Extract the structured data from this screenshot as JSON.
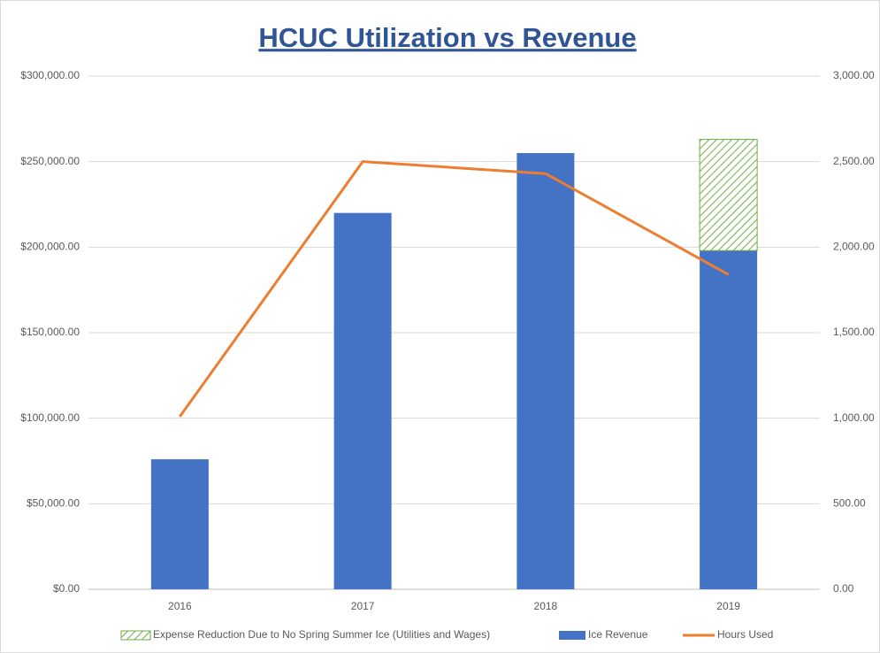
{
  "chart_data": {
    "type": "bar",
    "title": "HCUC Utilization vs Revenue",
    "categories": [
      "2016",
      "2017",
      "2018",
      "2019"
    ],
    "series": [
      {
        "name": "Expense Reduction Due to No Spring Summer Ice (Utilities and Wages)",
        "type": "bar",
        "color": "#70ad47",
        "pattern": "hatch",
        "values": [
          null,
          null,
          null,
          65000
        ]
      },
      {
        "name": "Ice Revenue",
        "type": "bar",
        "color": "#4472c4",
        "values": [
          76000,
          220000,
          255000,
          198000
        ]
      },
      {
        "name": "Hours Used",
        "type": "line",
        "axis": "y2",
        "color": "#ed7d31",
        "values": [
          1010,
          2500,
          2430,
          1840
        ]
      }
    ],
    "stacked": true,
    "ylim": [
      0,
      300000
    ],
    "yticks": [
      {
        "value": 0,
        "label": "$0.00"
      },
      {
        "value": 50000,
        "label": "$50,000.00"
      },
      {
        "value": 100000,
        "label": "$100,000.00"
      },
      {
        "value": 150000,
        "label": "$150,000.00"
      },
      {
        "value": 200000,
        "label": "$200,000.00"
      },
      {
        "value": 250000,
        "label": "$250,000.00"
      },
      {
        "value": 300000,
        "label": "$300,000.00"
      }
    ],
    "y2lim": [
      0,
      3000
    ],
    "y2ticks": [
      {
        "value": 0,
        "label": "0.00"
      },
      {
        "value": 500,
        "label": "500.00"
      },
      {
        "value": 1000,
        "label": "1,000.00"
      },
      {
        "value": 1500,
        "label": "1,500.00"
      },
      {
        "value": 2000,
        "label": "2,000.00"
      },
      {
        "value": 2500,
        "label": "2,500.00"
      },
      {
        "value": 3000,
        "label": "3,000.00"
      }
    ],
    "grid": true,
    "legend": "bottom"
  }
}
